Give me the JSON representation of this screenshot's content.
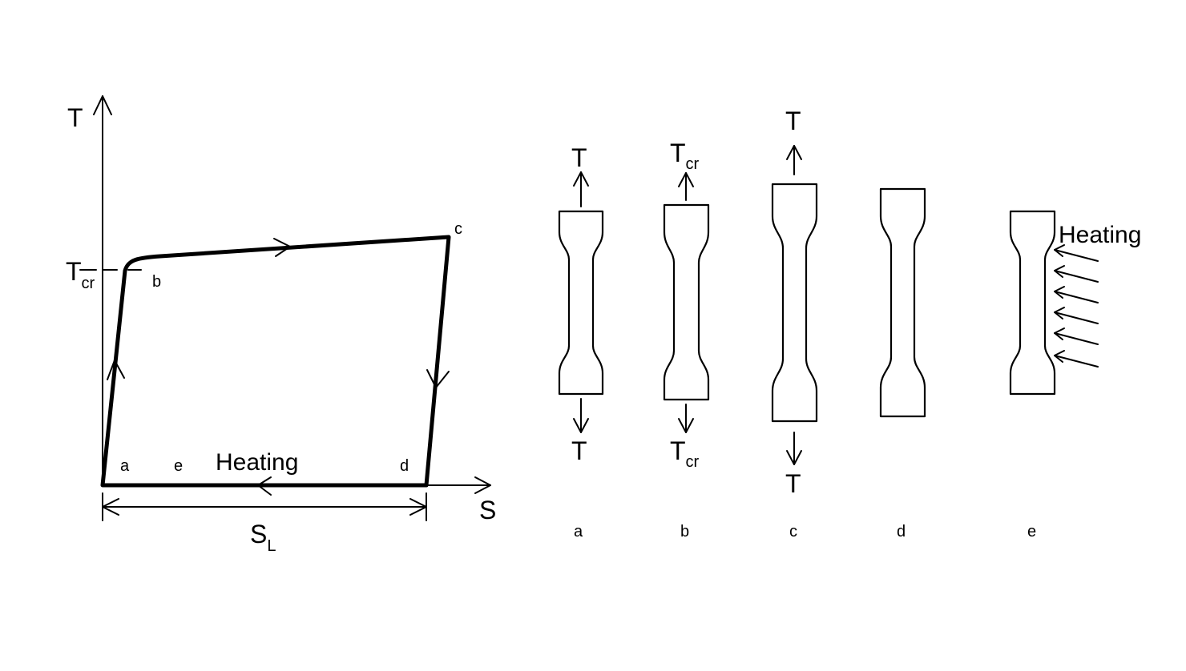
{
  "graph": {
    "y_axis_label": "T",
    "x_axis_label": "S",
    "critical_label": "T",
    "critical_sub": "cr",
    "points": {
      "a": "a",
      "b": "b",
      "c": "c",
      "d": "d",
      "e": "e"
    },
    "heating_label": "Heating",
    "length_label": "S",
    "length_sub": "L"
  },
  "specimens": {
    "a": {
      "label": "a",
      "top_force": "T",
      "bottom_force": "T"
    },
    "b": {
      "label": "b",
      "top_force": "T",
      "top_force_sub": "cr",
      "bottom_force": "T",
      "bottom_force_sub": "cr"
    },
    "c": {
      "label": "c",
      "top_force": "T",
      "bottom_force": "T"
    },
    "d": {
      "label": "d"
    },
    "e": {
      "label": "e",
      "heating_label": "Heating"
    }
  }
}
